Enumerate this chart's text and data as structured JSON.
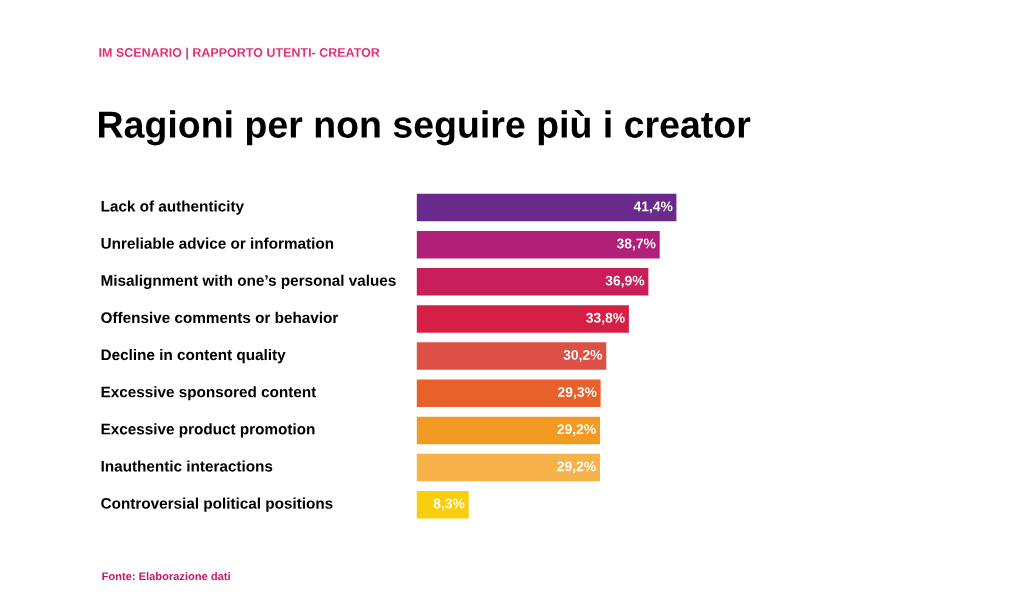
{
  "chart_data": {
    "type": "bar",
    "orientation": "horizontal",
    "subtitle": "IM SCENARIO | RAPPORTO UTENTI- CREATOR",
    "title": "Ragioni per non seguire più i creator",
    "categories": [
      "Lack of authenticity",
      "Unreliable advice or information",
      "Misalignment with one’s personal values",
      "Offensive comments or behavior",
      "Decline in content quality",
      "Excessive sponsored content",
      "Excessive product promotion",
      "Inauthentic interactions",
      "Controversial political positions"
    ],
    "values": [
      41.4,
      38.7,
      36.9,
      33.8,
      30.2,
      29.3,
      29.2,
      29.2,
      8.3
    ],
    "value_labels": [
      "41,4%",
      "38,7%",
      "36,9%",
      "33,8%",
      "30,2%",
      "29,3%",
      "29,2%",
      "29,2%",
      "8,3%"
    ],
    "colors": [
      "#6a2a8c",
      "#b01f78",
      "#c81e5a",
      "#d42045",
      "#dc5045",
      "#e8602a",
      "#f29a22",
      "#f8b24a",
      "#f7cf0e"
    ],
    "annotations": [
      "Fonte: Elaborazione dati"
    ]
  }
}
